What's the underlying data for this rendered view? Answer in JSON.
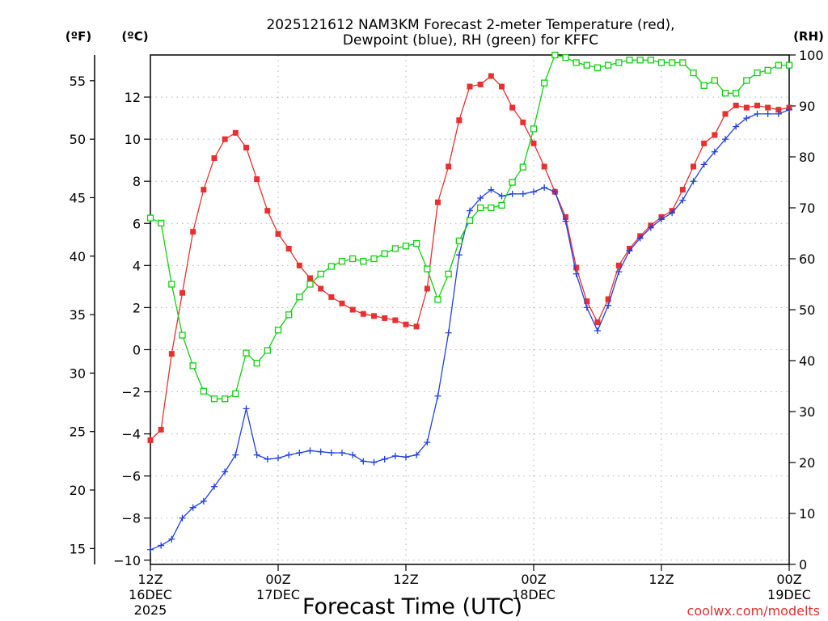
{
  "chart_data": {
    "type": "line",
    "title": "2025121612 NAM3KM Forecast 2-meter Temperature (red),",
    "subtitle": "Dewpoint (blue), RH (green) for KFFC",
    "xlabel": "Forecast Time (UTC)",
    "credit": "coolwx.com/modelts",
    "axis_units": {
      "fahrenheit": "(ºF)",
      "celsius": "(ºC)",
      "rh": "(RH)"
    },
    "x_hours_range": [
      0,
      60
    ],
    "x_ticks": [
      {
        "hour": 0,
        "line1": "12Z",
        "line2": "16DEC",
        "line3": "2025"
      },
      {
        "hour": 12,
        "line1": "00Z",
        "line2": "17DEC",
        "line3": ""
      },
      {
        "hour": 24,
        "line1": "12Z",
        "line2": "",
        "line3": ""
      },
      {
        "hour": 36,
        "line1": "00Z",
        "line2": "18DEC",
        "line3": ""
      },
      {
        "hour": 48,
        "line1": "12Z",
        "line2": "",
        "line3": ""
      },
      {
        "hour": 60,
        "line1": "00Z",
        "line2": "19DEC",
        "line3": ""
      }
    ],
    "ylim_celsius": [
      -10.2,
      14.0
    ],
    "ylim_rh": [
      0,
      100
    ],
    "y_ticks_celsius": [
      "-10",
      "-8",
      "-6",
      "-4",
      "-2",
      "0",
      "2",
      "4",
      "6",
      "8",
      "10",
      "12"
    ],
    "y_ticks_fahrenheit": [
      "15",
      "20",
      "25",
      "30",
      "35",
      "40",
      "45",
      "50",
      "55"
    ],
    "y_ticks_rh": [
      "0",
      "10",
      "20",
      "30",
      "40",
      "50",
      "60",
      "70",
      "80",
      "90",
      "100"
    ],
    "grid": true,
    "hours": [
      0,
      1,
      2,
      3,
      4,
      5,
      6,
      7,
      8,
      9,
      10,
      11,
      12,
      13,
      14,
      15,
      16,
      17,
      18,
      19,
      20,
      21,
      22,
      23,
      24,
      25,
      26,
      27,
      28,
      29,
      30,
      31,
      32,
      33,
      34,
      35,
      36,
      37,
      38,
      39,
      40,
      41,
      42,
      43,
      44,
      45,
      46,
      47,
      48,
      49,
      50,
      51,
      52,
      53,
      54,
      55,
      56,
      57,
      58,
      59,
      60
    ],
    "series": [
      {
        "name": "Temperature",
        "unit": "C",
        "color": "#e83030",
        "marker": "filled-square",
        "values": [
          -4.3,
          -3.8,
          -0.2,
          2.7,
          5.6,
          7.6,
          9.1,
          10.0,
          10.3,
          9.6,
          8.1,
          6.6,
          5.5,
          4.8,
          4.0,
          3.4,
          2.9,
          2.5,
          2.2,
          1.9,
          1.7,
          1.6,
          1.5,
          1.4,
          1.2,
          1.1,
          2.9,
          7.0,
          8.7,
          10.9,
          12.5,
          12.6,
          13.0,
          12.5,
          11.5,
          10.8,
          9.8,
          8.7,
          7.5,
          6.3,
          3.9,
          2.3,
          1.3,
          2.4,
          4.0,
          4.8,
          5.4,
          5.9,
          6.3,
          6.6,
          7.6,
          8.7,
          9.8,
          10.2,
          11.2,
          11.6,
          11.5,
          11.6,
          11.5,
          11.4,
          11.5
        ]
      },
      {
        "name": "Dewpoint",
        "unit": "C",
        "color": "#2040e0",
        "marker": "plus",
        "values": [
          -9.5,
          -9.3,
          -9.0,
          -8.0,
          -7.5,
          -7.2,
          -6.5,
          -5.8,
          -5.0,
          -2.8,
          -5.0,
          -5.2,
          -5.15,
          -5.0,
          -4.9,
          -4.8,
          -4.85,
          -4.9,
          -4.9,
          -5.0,
          -5.3,
          -5.35,
          -5.2,
          -5.05,
          -5.1,
          -5.0,
          -4.4,
          -2.2,
          0.8,
          4.5,
          6.6,
          7.2,
          7.6,
          7.3,
          7.4,
          7.4,
          7.5,
          7.7,
          7.5,
          6.1,
          3.6,
          2.0,
          0.9,
          2.1,
          3.7,
          4.7,
          5.3,
          5.8,
          6.2,
          6.5,
          7.1,
          8.0,
          8.8,
          9.4,
          10.0,
          10.6,
          11.0,
          11.2,
          11.2,
          11.2,
          11.4
        ]
      },
      {
        "name": "RH",
        "unit": "%",
        "color": "#10d010",
        "marker": "hollow-square",
        "values": [
          68,
          67,
          55,
          45,
          39,
          34,
          32.5,
          32.5,
          33.5,
          41.5,
          39.5,
          42,
          46,
          49,
          52.5,
          55,
          57,
          58.5,
          59.5,
          60,
          59.5,
          60,
          61,
          62,
          62.5,
          63,
          58,
          52,
          57,
          63.5,
          67.5,
          70,
          70,
          70.5,
          75,
          78,
          85.5,
          94.5,
          100,
          99.5,
          98.5,
          98,
          97.5,
          98,
          98.5,
          99,
          99,
          99,
          98.5,
          98.5,
          98.5,
          96.5,
          94,
          95,
          92.5,
          92.5,
          95,
          96.5,
          97,
          98,
          98
        ]
      }
    ]
  }
}
